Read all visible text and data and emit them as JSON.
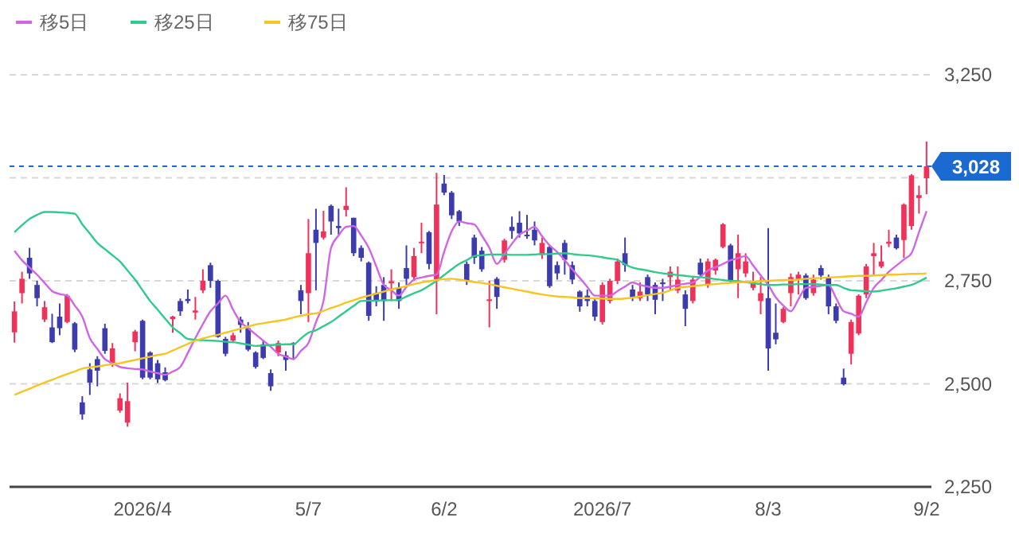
{
  "chart_data": {
    "type": "candlestick",
    "categories": [
      null,
      null,
      null,
      null,
      null,
      null,
      null,
      null,
      null,
      null,
      null,
      null,
      null,
      null,
      null,
      null,
      null,
      "2026/4",
      null,
      null,
      null,
      null,
      null,
      null,
      null,
      null,
      null,
      null,
      null,
      null,
      null,
      null,
      null,
      null,
      null,
      null,
      null,
      null,
      null,
      "5/7",
      null,
      null,
      null,
      null,
      null,
      null,
      null,
      null,
      null,
      null,
      null,
      null,
      null,
      null,
      null,
      null,
      null,
      "6/2",
      null,
      null,
      null,
      null,
      null,
      null,
      null,
      null,
      null,
      null,
      null,
      null,
      null,
      null,
      null,
      null,
      null,
      null,
      null,
      null,
      "2026/7",
      null,
      null,
      null,
      null,
      null,
      null,
      null,
      null,
      null,
      null,
      null,
      null,
      null,
      null,
      null,
      null,
      null,
      null,
      null,
      null,
      null,
      "8/3",
      null,
      null,
      null,
      null,
      null,
      null,
      null,
      null,
      null,
      null,
      null,
      null,
      null,
      null,
      null,
      null,
      null,
      null,
      null,
      null,
      "9/2"
    ],
    "ohlc": [
      [
        2625,
        2700,
        2600,
        2676
      ],
      [
        2720,
        2772,
        2695,
        2755
      ],
      [
        2806,
        2830,
        2755,
        2768
      ],
      [
        2740,
        2750,
        2688,
        2708
      ],
      [
        2656,
        2701,
        2650,
        2686
      ],
      [
        2637,
        2670,
        2599,
        2601
      ],
      [
        2663,
        2695,
        2618,
        2635
      ],
      [
        2650,
        2718,
        2647,
        2714
      ],
      [
        2647,
        2650,
        2577,
        2583
      ],
      [
        2455,
        2470,
        2413,
        2426
      ],
      [
        2535,
        2550,
        2473,
        2503
      ],
      [
        2560,
        2567,
        2494,
        2532
      ],
      [
        2635,
        2646,
        2573,
        2580
      ],
      [
        2551,
        2599,
        2541,
        2586
      ],
      [
        2435,
        2477,
        2430,
        2465
      ],
      [
        2406,
        2503,
        2396,
        2458
      ],
      [
        2601,
        2631,
        2579,
        2627
      ],
      [
        2653,
        2656,
        2511,
        2515
      ],
      [
        2576,
        2579,
        2511,
        2515
      ],
      [
        2550,
        2558,
        2502,
        2511
      ],
      [
        2528,
        2540,
        2506,
        2509
      ],
      [
        2657,
        2665,
        2624,
        2663
      ],
      [
        2701,
        2707,
        2665,
        2676
      ],
      [
        2706,
        2729,
        2695,
        2701
      ],
      [
        2673,
        2711,
        2656,
        2678
      ],
      [
        2727,
        2778,
        2720,
        2750
      ],
      [
        2788,
        2794,
        2733,
        2750
      ],
      [
        2750,
        2753,
        2612,
        2614
      ],
      [
        2609,
        2614,
        2567,
        2573
      ],
      [
        2605,
        2624,
        2599,
        2618
      ],
      [
        2656,
        2663,
        2624,
        2643
      ],
      [
        2635,
        2650,
        2579,
        2583
      ],
      [
        2576,
        2579,
        2537,
        2541
      ],
      [
        2596,
        2605,
        2560,
        2563
      ],
      [
        2526,
        2535,
        2483,
        2494
      ],
      [
        2576,
        2605,
        2567,
        2599
      ],
      [
        2569,
        2579,
        2532,
        2558
      ],
      [
        2599,
        2601,
        2558,
        2595
      ],
      [
        2727,
        2740,
        2669,
        2701
      ],
      [
        2720,
        2900,
        2650,
        2817
      ],
      [
        2874,
        2925,
        2727,
        2842
      ],
      [
        2855,
        2920,
        2850,
        2870
      ],
      [
        2932,
        2935,
        2862,
        2894
      ],
      [
        2883,
        2925,
        2862,
        2878
      ],
      [
        2922,
        2977,
        2906,
        2932
      ],
      [
        2903,
        2903,
        2810,
        2817
      ],
      [
        2830,
        2836,
        2797,
        2806
      ],
      [
        2794,
        2797,
        2653,
        2665
      ],
      [
        2720,
        2737,
        2688,
        2701
      ],
      [
        2740,
        2759,
        2653,
        2701
      ],
      [
        2744,
        2778,
        2701,
        2749
      ],
      [
        2733,
        2746,
        2682,
        2701
      ],
      [
        2781,
        2836,
        2740,
        2755
      ],
      [
        2759,
        2830,
        2750,
        2810
      ],
      [
        2842,
        2891,
        2817,
        2845
      ],
      [
        2868,
        2871,
        2778,
        2791
      ],
      [
        2753,
        3012,
        2669,
        2935
      ],
      [
        2986,
        3007,
        2958,
        2964
      ],
      [
        2964,
        2968,
        2900,
        2909
      ],
      [
        2919,
        2922,
        2883,
        2894
      ],
      [
        2791,
        2797,
        2740,
        2750
      ],
      [
        2855,
        2862,
        2791,
        2806
      ],
      [
        2823,
        2832,
        2772,
        2778
      ],
      [
        2701,
        2750,
        2637,
        2705
      ],
      [
        2755,
        2759,
        2682,
        2711
      ],
      [
        2801,
        2852,
        2794,
        2848
      ],
      [
        2881,
        2906,
        2852,
        2871
      ],
      [
        2891,
        2919,
        2855,
        2865
      ],
      [
        2862,
        2910,
        2852,
        2858
      ],
      [
        2874,
        2894,
        2836,
        2848
      ],
      [
        2813,
        2855,
        2803,
        2842
      ],
      [
        2832,
        2836,
        2733,
        2737
      ],
      [
        2788,
        2797,
        2753,
        2768
      ],
      [
        2842,
        2849,
        2765,
        2801
      ],
      [
        2788,
        2797,
        2742,
        2753
      ],
      [
        2724,
        2727,
        2675,
        2688
      ],
      [
        2714,
        2729,
        2688,
        2701
      ],
      [
        2701,
        2708,
        2653,
        2663
      ],
      [
        2650,
        2746,
        2644,
        2740
      ],
      [
        2701,
        2755,
        2695,
        2750
      ],
      [
        2750,
        2804,
        2742,
        2797
      ],
      [
        2817,
        2855,
        2772,
        2788
      ],
      [
        2729,
        2740,
        2701,
        2708
      ],
      [
        2708,
        2746,
        2701,
        2724
      ],
      [
        2759,
        2765,
        2701,
        2717
      ],
      [
        2740,
        2746,
        2669,
        2704
      ],
      [
        2746,
        2755,
        2701,
        2742
      ],
      [
        2759,
        2785,
        2727,
        2772
      ],
      [
        2727,
        2785,
        2720,
        2753
      ],
      [
        2717,
        2727,
        2640,
        2682
      ],
      [
        2701,
        2759,
        2695,
        2753
      ],
      [
        2794,
        2804,
        2759,
        2765
      ],
      [
        2742,
        2804,
        2733,
        2797
      ],
      [
        2775,
        2804,
        2765,
        2801
      ],
      [
        2832,
        2890,
        2829,
        2887
      ],
      [
        2836,
        2840,
        2746,
        2750
      ],
      [
        2778,
        2862,
        2708,
        2817
      ],
      [
        2768,
        2817,
        2759,
        2797
      ],
      [
        2733,
        2772,
        2727,
        2750
      ],
      [
        2701,
        2759,
        2669,
        2720
      ],
      [
        2708,
        2878,
        2532,
        2586
      ],
      [
        2624,
        2695,
        2596,
        2608
      ],
      [
        2650,
        2686,
        2647,
        2682
      ],
      [
        2720,
        2768,
        2688,
        2759
      ],
      [
        2753,
        2772,
        2717,
        2765
      ],
      [
        2763,
        2768,
        2704,
        2708
      ],
      [
        2720,
        2765,
        2714,
        2753
      ],
      [
        2781,
        2788,
        2753,
        2763
      ],
      [
        2759,
        2765,
        2669,
        2688
      ],
      [
        2688,
        2695,
        2647,
        2653
      ],
      [
        2515,
        2537,
        2496,
        2499
      ],
      [
        2573,
        2656,
        2547,
        2650
      ],
      [
        2622,
        2717,
        2618,
        2714
      ],
      [
        2717,
        2791,
        2708,
        2785
      ],
      [
        2810,
        2842,
        2765,
        2817
      ],
      [
        2785,
        2836,
        2781,
        2797
      ],
      [
        2840,
        2874,
        2832,
        2845
      ],
      [
        2855,
        2862,
        2826,
        2829
      ],
      [
        2849,
        2938,
        2806,
        2935
      ],
      [
        2883,
        3009,
        2874,
        3006
      ],
      [
        2951,
        2981,
        2913,
        2958
      ],
      [
        2999,
        3088,
        2960,
        3028
      ]
    ],
    "colors": [
      "#f0325a",
      "#f0325a",
      "#3c3caf",
      "#3c3caf",
      "#f0325a",
      "#3c3caf",
      "#3c3caf",
      "#f0325a",
      "#3c3caf",
      "#3c3caf",
      "#3c3caf",
      "#3c3caf",
      "#3c3caf",
      "#f0325a",
      "#f0325a",
      "#f0325a",
      "#f0325a",
      "#3c3caf",
      "#3c3caf",
      "#3c3caf",
      "#3c3caf",
      "#f0325a",
      "#3c3caf",
      "#3c3caf",
      "#f0325a",
      "#f0325a",
      "#3c3caf",
      "#3c3caf",
      "#3c3caf",
      "#f0325a",
      "#3c3caf",
      "#3c3caf",
      "#3c3caf",
      "#3c3caf",
      "#3c3caf",
      "#f0325a",
      "#3c3caf",
      "#3c3caf",
      "#3c3caf",
      "#f0325a",
      "#3c3caf",
      "#f0325a",
      "#3c3caf",
      "#3c3caf",
      "#f0325a",
      "#3c3caf",
      "#3c3caf",
      "#3c3caf",
      "#3c3caf",
      "#3c3caf",
      "#f0325a",
      "#3c3caf",
      "#3c3caf",
      "#f0325a",
      "#f0325a",
      "#3c3caf",
      "#f0325a",
      "#3c3caf",
      "#3c3caf",
      "#3c3caf",
      "#3c3caf",
      "#3c3caf",
      "#3c3caf",
      "#f0325a",
      "#3c3caf",
      "#f0325a",
      "#3c3caf",
      "#3c3caf",
      "#3c3caf",
      "#3c3caf",
      "#f0325a",
      "#3c3caf",
      "#3c3caf",
      "#3c3caf",
      "#3c3caf",
      "#3c3caf",
      "#3c3caf",
      "#3c3caf",
      "#f0325a",
      "#f0325a",
      "#f0325a",
      "#3c3caf",
      "#3c3caf",
      "#f0325a",
      "#3c3caf",
      "#3c3caf",
      "#3c3caf",
      "#f0325a",
      "#f0325a",
      "#3c3caf",
      "#f0325a",
      "#3c3caf",
      "#f0325a",
      "#f0325a",
      "#f0325a",
      "#3c3caf",
      "#f0325a",
      "#f0325a",
      "#f0325a",
      "#f0325a",
      "#3c3caf",
      "#3c3caf",
      "#f0325a",
      "#f0325a",
      "#f0325a",
      "#3c3caf",
      "#f0325a",
      "#3c3caf",
      "#3c3caf",
      "#3c3caf",
      "#3c3caf",
      "#f0325a",
      "#f0325a",
      "#f0325a",
      "#f0325a",
      "#f0325a",
      "#f0325a",
      "#3c3caf",
      "#f0325a",
      "#f0325a",
      "#f0325a",
      "#f0325a"
    ],
    "series": [
      {
        "name": "移5日",
        "type": "line",
        "color": "#d264e6",
        "values": [
          2823,
          2800,
          2782,
          2765,
          2745,
          2725,
          2718,
          2714,
          2690,
          2663,
          2611,
          2585,
          2560,
          2550,
          2541,
          2538,
          2536,
          2535,
          2530,
          2526,
          2522,
          2530,
          2541,
          2575,
          2611,
          2645,
          2676,
          2695,
          2714,
          2680,
          2650,
          2635,
          2620,
          2605,
          2590,
          2573,
          2566,
          2560,
          2580,
          2599,
          2650,
          2701,
          2830,
          2860,
          2881,
          2883,
          2860,
          2830,
          2785,
          2740,
          2727,
          2714,
          2735,
          2753,
          2758,
          2762,
          2765,
          2820,
          2870,
          2894,
          2890,
          2887,
          2860,
          2830,
          2791,
          2815,
          2840,
          2862,
          2872,
          2881,
          2858,
          2836,
          2820,
          2800,
          2778,
          2757,
          2735,
          2714,
          2714,
          2714,
          2725,
          2736,
          2746,
          2740,
          2736,
          2733,
          2733,
          2736,
          2740,
          2743,
          2746,
          2760,
          2775,
          2783,
          2791,
          2800,
          2805,
          2810,
          2787,
          2763,
          2740,
          2710,
          2690,
          2676,
          2705,
          2733,
          2735,
          2738,
          2740,
          2708,
          2676,
          2670,
          2663,
          2698,
          2733,
          2752,
          2772,
          2787,
          2802,
          2817,
          2868,
          2919
        ]
      },
      {
        "name": "移25日",
        "type": "line",
        "color": "#2ecb8c",
        "values": [
          2868,
          2885,
          2900,
          2910,
          2917,
          2917,
          2916,
          2915,
          2913,
          2887,
          2865,
          2842,
          2827,
          2812,
          2797,
          2775,
          2753,
          2727,
          2701,
          2680,
          2658,
          2637,
          2623,
          2609,
          2607,
          2606,
          2605,
          2604,
          2602,
          2601,
          2598,
          2595,
          2592,
          2593,
          2594,
          2595,
          2596,
          2596,
          2610,
          2624,
          2630,
          2640,
          2650,
          2663,
          2676,
          2689,
          2701,
          2702,
          2702,
          2703,
          2703,
          2704,
          2712,
          2720,
          2727,
          2738,
          2750,
          2764,
          2778,
          2791,
          2800,
          2810,
          2812,
          2814,
          2814,
          2814,
          2813,
          2813,
          2813,
          2814,
          2815,
          2815,
          2816,
          2817,
          2815,
          2813,
          2812,
          2810,
          2807,
          2804,
          2801,
          2790,
          2782,
          2778,
          2775,
          2771,
          2768,
          2766,
          2764,
          2762,
          2760,
          2759,
          2757,
          2754,
          2752,
          2750,
          2749,
          2747,
          2744,
          2742,
          2740,
          2740,
          2741,
          2741,
          2742,
          2742,
          2742,
          2741,
          2740,
          2740,
          2733,
          2727,
          2726,
          2725,
          2724,
          2726,
          2729,
          2732,
          2736,
          2740,
          2748,
          2758
        ]
      },
      {
        "name": "移75日",
        "type": "line",
        "color": "#f5c623",
        "values": [
          2473,
          2481,
          2488,
          2496,
          2503,
          2510,
          2517,
          2524,
          2530,
          2537,
          2540,
          2542,
          2545,
          2548,
          2550,
          2554,
          2558,
          2562,
          2566,
          2570,
          2573,
          2581,
          2589,
          2597,
          2605,
          2610,
          2615,
          2619,
          2624,
          2629,
          2634,
          2639,
          2644,
          2647,
          2650,
          2653,
          2656,
          2661,
          2665,
          2669,
          2671,
          2677,
          2684,
          2690,
          2697,
          2703,
          2709,
          2714,
          2719,
          2724,
          2729,
          2733,
          2737,
          2742,
          2746,
          2749,
          2752,
          2754,
          2755,
          2753,
          2750,
          2747,
          2745,
          2742,
          2738,
          2734,
          2731,
          2727,
          2724,
          2720,
          2717,
          2714,
          2712,
          2711,
          2710,
          2708,
          2708,
          2707,
          2707,
          2706,
          2706,
          2707,
          2709,
          2712,
          2715,
          2718,
          2721,
          2727,
          2733,
          2735,
          2737,
          2739,
          2741,
          2742,
          2744,
          2745,
          2746,
          2747,
          2748,
          2749,
          2750,
          2751,
          2752,
          2752,
          2753,
          2755,
          2756,
          2757,
          2758,
          2759,
          2760,
          2761,
          2762,
          2762,
          2763,
          2764,
          2765,
          2765,
          2766,
          2767,
          2767,
          2768
        ]
      }
    ],
    "ylim": [
      2250,
      3250
    ],
    "yticks": [
      {
        "value": 2250,
        "label": "2,250"
      },
      {
        "value": 2500,
        "label": "2,500"
      },
      {
        "value": 2750,
        "label": "2,750"
      },
      {
        "value": 3000,
        "label": null
      },
      {
        "value": 3250,
        "label": "3,250"
      }
    ],
    "grid": "y",
    "legend": "top left",
    "ref_lines": [
      {
        "axis": "y",
        "value": 3028,
        "label": "3,028",
        "color": "#1a6ad2",
        "line_style": "dashed"
      }
    ]
  }
}
